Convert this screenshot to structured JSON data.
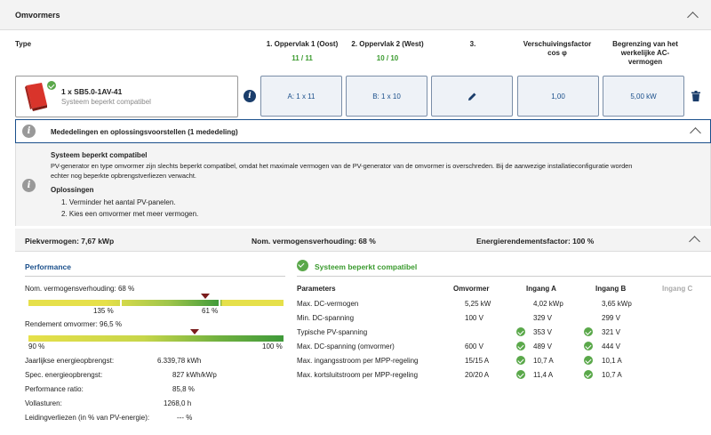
{
  "section": {
    "title": "Omvormers"
  },
  "columns": {
    "type": "Type",
    "surface1": "1. Oppervlak 1 (Oost)",
    "surface1_count": "11 / 11",
    "surface2": "2. Oppervlak 2 (West)",
    "surface2_count": "10 / 10",
    "surface3": "3.",
    "cos_phi_l1": "Verschuivingsfactor",
    "cos_phi_l2": "cos φ",
    "ac_limit_l1": "Begrenzing van het",
    "ac_limit_l2": "werkelijke AC-",
    "ac_limit_l3": "vermogen"
  },
  "inverter": {
    "name": "1 x SB5.0-1AV-41",
    "status": "Systeem beperkt compatibel",
    "surface1_value": "A: 1 x 11",
    "surface2_value": "B: 1 x 10",
    "cos_phi_value": "1,00",
    "ac_limit_value": "5,00 kW"
  },
  "notices": {
    "header": "Mededelingen en oplossingsvoorstellen (1 mededeling)",
    "title": "Systeem beperkt compatibel",
    "text1": "PV-generator en type omvormer zijn slechts beperkt compatibel, omdat het maximale vermogen van de PV-generator van de omvormer is overschreden. Bij de aanwezige installatieconfiguratie worden",
    "text2": "echter nog beperkte opbrengstverliezen verwacht.",
    "solutions_title": "Oplossingen",
    "solution1": "1. Verminder het aantal PV-panelen.",
    "solution2": "2. Kies een omvormer met meer vermogen."
  },
  "summary": {
    "peak": "Piekvermogen: 7,67 kWp",
    "ratio": "Nom. vermogensverhouding: 68 %",
    "efficiency": "Energierendementsfactor: 100 %"
  },
  "performance": {
    "title": "Performance",
    "ratio_label": "Nom. vermogensverhouding: 68 %",
    "ratio_marker": 0.68,
    "ratio_left": "135 %",
    "ratio_mid": "61 %",
    "efficiency_label": "Rendement omvormer: 96,5 %",
    "efficiency_marker": 0.965,
    "efficiency_left": "90 %",
    "efficiency_right": "100 %",
    "stats": [
      {
        "label": "Jaarlijkse energieopbrengst:",
        "value": "6.339,78 kWh"
      },
      {
        "label": "Spec. energieopbrengst:",
        "value": "827 kWh/kWp"
      },
      {
        "label": "Performance ratio:",
        "value": "85,8 %"
      },
      {
        "label": "Vollasturen:",
        "value": "1268,0 h"
      },
      {
        "label": "Leidingverliezen (in % van PV-energie):",
        "value": "--- %"
      }
    ]
  },
  "params": {
    "status_title": "Systeem beperkt compatibel",
    "headers": {
      "param": "Parameters",
      "inverter": "Omvormer",
      "a": "Ingang A",
      "b": "Ingang B",
      "c": "Ingang C"
    },
    "rows": [
      {
        "param": "Max. DC-vermogen",
        "inv": "5,25 kW",
        "a": "4,02 kWp",
        "b": "3,65 kWp",
        "check": false
      },
      {
        "param": "Min. DC-spanning",
        "inv": "100 V",
        "a": "329 V",
        "b": "299 V",
        "check": false
      },
      {
        "param": "Typische PV-spanning",
        "inv": "",
        "a": "353 V",
        "b": "321 V",
        "check": true
      },
      {
        "param": "Max. DC-spanning (omvormer)",
        "inv": "600 V",
        "a": "489 V",
        "b": "444 V",
        "check": true
      },
      {
        "param": "Max. ingangsstroom per MPP-regeling",
        "inv": "15/15 A",
        "a": "10,7 A",
        "b": "10,1 A",
        "check": true
      },
      {
        "param": "Max. kortsluitstroom per MPP-regeling",
        "inv": "20/20 A",
        "a": "11,4 A",
        "b": "10,7 A",
        "check": true
      }
    ]
  },
  "colors": {
    "accent": "#1a4f8b",
    "green": "#3a9a2e",
    "bar_yellow": "#e6e04a",
    "bar_green": "#3f9a3a"
  }
}
